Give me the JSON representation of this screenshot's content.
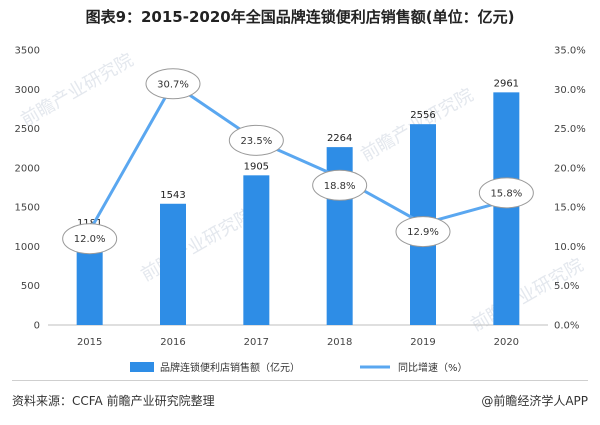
{
  "header": {
    "title": "图表9：2015-2020年全国品牌连锁便利店销售额(单位：亿元)"
  },
  "footer": {
    "source": "资料来源：CCFA 前瞻产业研究院整理",
    "brand": "@前瞻经济学人APP"
  },
  "watermark": "前瞻产业研究院",
  "colors": {
    "bar": "#2E8DE6",
    "line": "#5AA7F0",
    "accent": "#2E8DE6"
  },
  "chart_data": {
    "type": "bar",
    "categories": [
      "2015",
      "2016",
      "2017",
      "2018",
      "2019",
      "2020"
    ],
    "series": [
      {
        "name": "品牌连锁便利店销售额（亿元）",
        "type": "bar",
        "axis": "left",
        "values": [
          1181,
          1543,
          1905,
          2264,
          2556,
          2961
        ]
      },
      {
        "name": "同比增速（%）",
        "type": "line",
        "axis": "right",
        "values": [
          12.0,
          30.7,
          23.5,
          18.8,
          12.9,
          15.8
        ]
      }
    ],
    "left_axis": {
      "min": 0,
      "max": 3500,
      "step": 500,
      "ticks": [
        "0",
        "500",
        "1000",
        "1500",
        "2000",
        "2500",
        "3000",
        "3500"
      ]
    },
    "right_axis": {
      "min": 0,
      "max": 35,
      "step": 5,
      "ticks": [
        "0.0%",
        "5.0%",
        "10.0%",
        "15.0%",
        "20.0%",
        "25.0%",
        "30.0%",
        "35.0%"
      ]
    },
    "bar_labels": [
      "1181",
      "1543",
      "1905",
      "2264",
      "2556",
      "2961"
    ],
    "line_labels": [
      "12.0%",
      "30.7%",
      "23.5%",
      "18.8%",
      "12.9%",
      "15.8%"
    ],
    "legend": {
      "position": "bottom",
      "bar_label": "品牌连锁便利店销售额（亿元）",
      "line_label": "同比增速（%）"
    },
    "grid": false
  }
}
